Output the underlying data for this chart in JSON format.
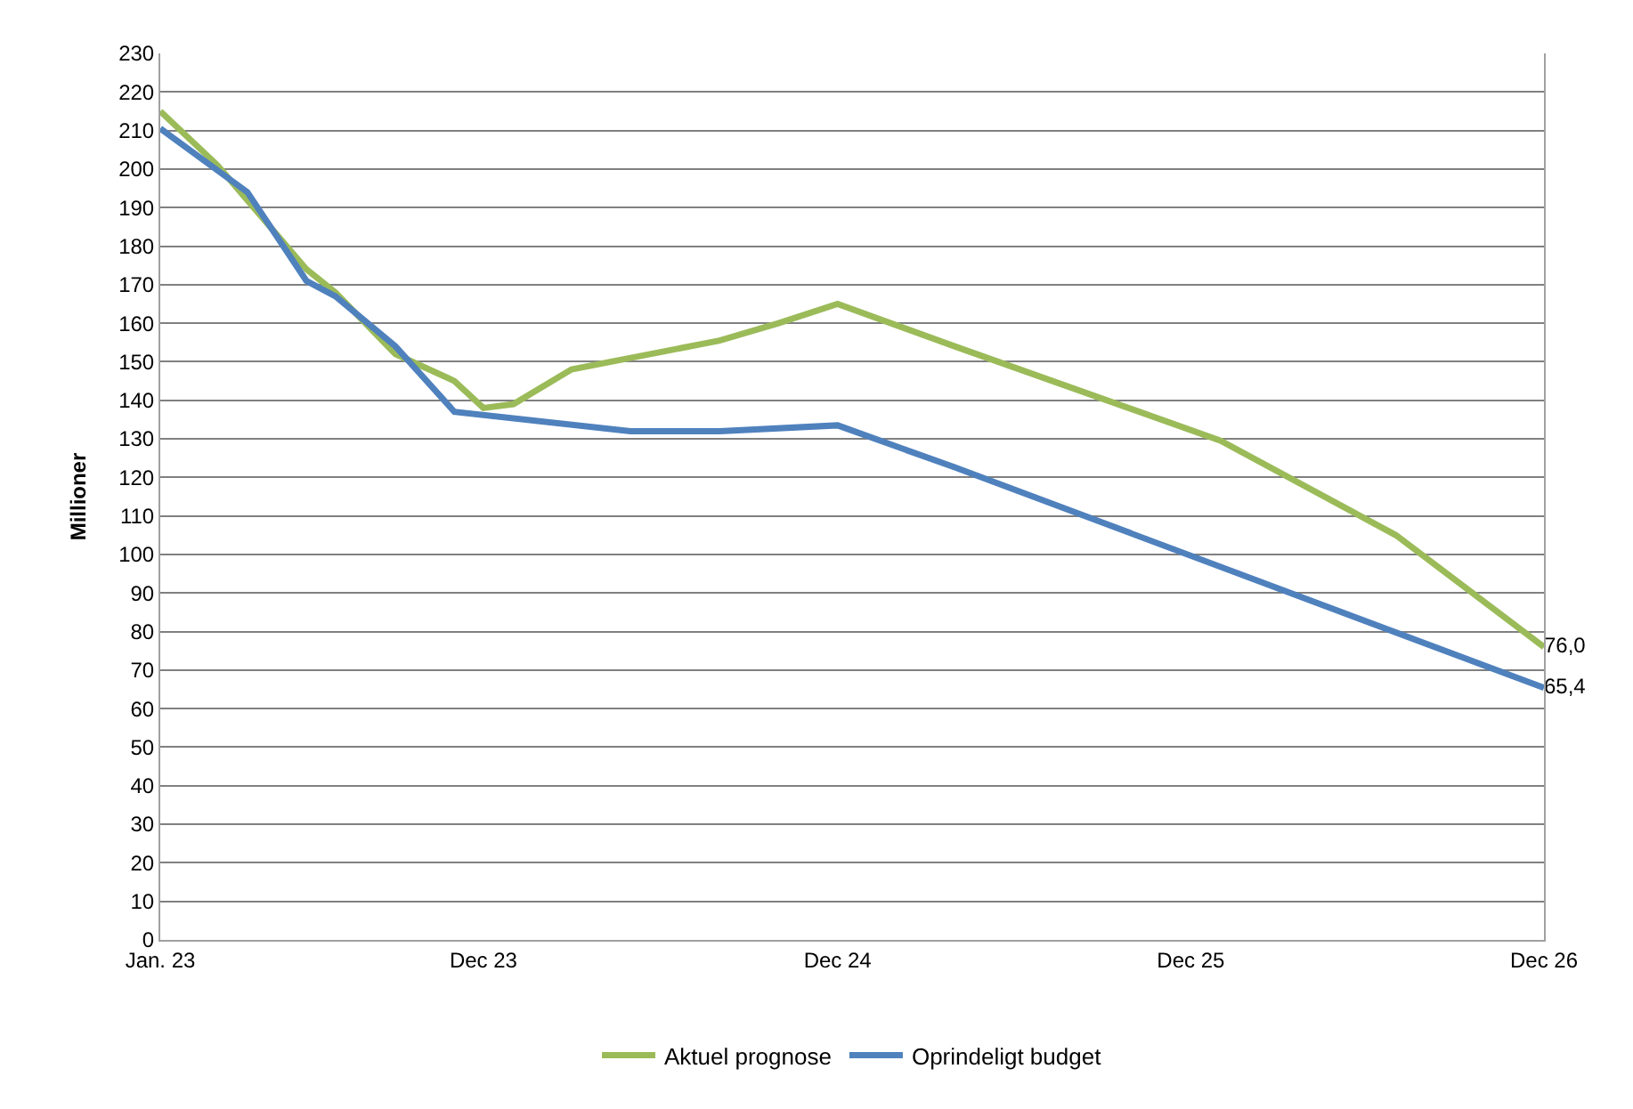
{
  "chart_data": {
    "type": "line",
    "ylabel": "Millioner",
    "x": [
      "2023-01",
      "2023-03",
      "2023-06",
      "2023-07",
      "2023-09",
      "2023-11",
      "2023-12",
      "2024-01",
      "2024-03",
      "2024-05",
      "2024-08",
      "2024-10",
      "2024-12",
      "2025-04",
      "2026-01",
      "2026-07",
      "2026-12"
    ],
    "series": [
      {
        "name": "Aktuel prognose",
        "color": "#9bbb59",
        "values": [
          215,
          201,
          174,
          168,
          152,
          145,
          138,
          139,
          148,
          151,
          155.5,
          160,
          165,
          154,
          129.5,
          105,
          76.0
        ],
        "value_labels": [
          null,
          null,
          null,
          null,
          null,
          null,
          null,
          null,
          null,
          null,
          null,
          null,
          null,
          null,
          null,
          null,
          "76,0"
        ]
      },
      {
        "name": "Oprindeligt budget",
        "color": "#4f81bd",
        "x": [
          "2023-01",
          "2023-04",
          "2023-06",
          "2023-07",
          "2023-09",
          "2023-11",
          "2024-05",
          "2024-08",
          "2024-12",
          "2025-04",
          "2026-12"
        ],
        "values": [
          210.5,
          194,
          171,
          167,
          154,
          137,
          132,
          132,
          133.5,
          122.6,
          65.4
        ],
        "value_labels": [
          null,
          null,
          null,
          null,
          null,
          null,
          null,
          null,
          null,
          null,
          "65,4"
        ]
      }
    ],
    "xlim": [
      "2023-01",
      "2026-12"
    ],
    "xticks": [
      {
        "value": "2023-01",
        "label": "Jan. 23"
      },
      {
        "value": "2023-12",
        "label": "Dec 23"
      },
      {
        "value": "2024-12",
        "label": "Dec 24"
      },
      {
        "value": "2025-12",
        "label": "Dec 25"
      },
      {
        "value": "2026-12",
        "label": "Dec 26"
      }
    ],
    "ylim": [
      0,
      230
    ],
    "yticks": [
      0,
      10,
      20,
      30,
      40,
      50,
      60,
      70,
      80,
      90,
      100,
      110,
      120,
      130,
      140,
      150,
      160,
      170,
      180,
      190,
      200,
      210,
      220,
      230
    ],
    "grid": "y",
    "legend": "bottom",
    "line_style": "solid",
    "marker": "none"
  }
}
